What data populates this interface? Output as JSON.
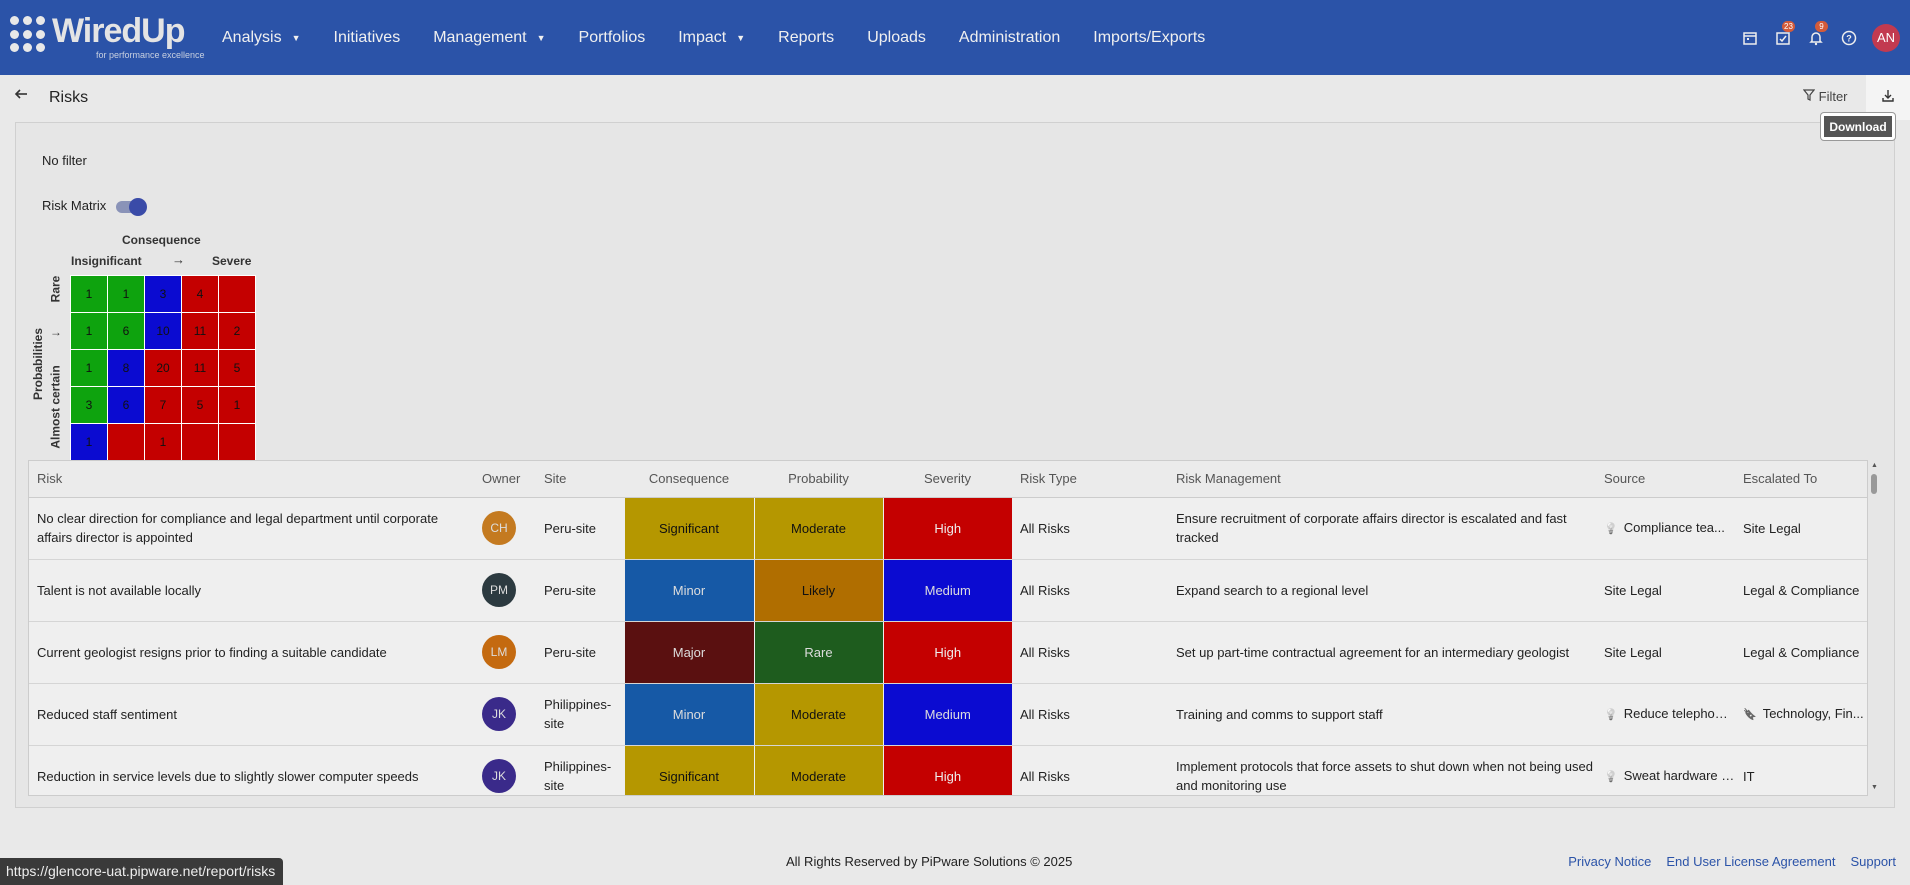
{
  "app": {
    "logo_text": "WiredUp",
    "logo_tagline": "for performance excellence"
  },
  "nav": {
    "items": [
      {
        "label": "Analysis",
        "dropdown": true
      },
      {
        "label": "Initiatives",
        "dropdown": false
      },
      {
        "label": "Management",
        "dropdown": true
      },
      {
        "label": "Portfolios",
        "dropdown": false
      },
      {
        "label": "Impact",
        "dropdown": true
      },
      {
        "label": "Reports",
        "dropdown": false
      },
      {
        "label": "Uploads",
        "dropdown": false
      },
      {
        "label": "Administration",
        "dropdown": false
      },
      {
        "label": "Imports/Exports",
        "dropdown": false
      }
    ]
  },
  "topbar": {
    "tasks_badge": "23",
    "notifications_badge": "9",
    "user_initials": "AN",
    "icons": [
      "calendar-icon",
      "tasks-icon",
      "bell-icon",
      "help-icon"
    ]
  },
  "page": {
    "title": "Risks",
    "filter_label": "Filter",
    "download_tooltip": "Download",
    "no_filter": "No filter",
    "risk_matrix_label": "Risk Matrix",
    "risk_matrix_on": true
  },
  "matrix": {
    "consequence_title": "Consequence",
    "consequence_low": "Insignificant",
    "consequence_arrow": "→",
    "consequence_high": "Severe",
    "probability_title": "Probabilities",
    "prob_low": "Rare",
    "prob_arrow": "↓",
    "prob_high": "Almost certain",
    "rows": [
      [
        {
          "v": "1",
          "c": "green"
        },
        {
          "v": "1",
          "c": "green"
        },
        {
          "v": "3",
          "c": "blue"
        },
        {
          "v": "4",
          "c": "red"
        },
        {
          "v": "",
          "c": "red"
        }
      ],
      [
        {
          "v": "1",
          "c": "green"
        },
        {
          "v": "6",
          "c": "green"
        },
        {
          "v": "10",
          "c": "blue"
        },
        {
          "v": "11",
          "c": "red"
        },
        {
          "v": "2",
          "c": "red"
        }
      ],
      [
        {
          "v": "1",
          "c": "green"
        },
        {
          "v": "8",
          "c": "blue"
        },
        {
          "v": "20",
          "c": "red"
        },
        {
          "v": "11",
          "c": "red"
        },
        {
          "v": "5",
          "c": "red"
        }
      ],
      [
        {
          "v": "3",
          "c": "green"
        },
        {
          "v": "6",
          "c": "blue"
        },
        {
          "v": "7",
          "c": "red"
        },
        {
          "v": "5",
          "c": "red"
        },
        {
          "v": "1",
          "c": "red"
        }
      ],
      [
        {
          "v": "1",
          "c": "blue"
        },
        {
          "v": "",
          "c": "red"
        },
        {
          "v": "1",
          "c": "red"
        },
        {
          "v": "",
          "c": "red"
        },
        {
          "v": "",
          "c": "red"
        }
      ]
    ]
  },
  "table": {
    "headers": [
      "Risk",
      "Owner",
      "Site",
      "Consequence",
      "Probability",
      "Severity",
      "Risk Type",
      "Risk Management",
      "Source",
      "Escalated To"
    ],
    "rows": [
      {
        "risk": "No clear direction for compliance and legal department until corporate affairs director is appointed",
        "owner": "CH",
        "owner_color": "ch",
        "site": "Peru-site",
        "consequence": "Significant",
        "cons_class": "sig",
        "probability": "Moderate",
        "prob_class": "mod",
        "severity": "High",
        "sev_class": "high",
        "risk_type": "All Risks",
        "management": "Ensure recruitment of corporate affairs director is escalated and fast tracked",
        "source": "Compliance tea...",
        "source_icon": "lightbulb-icon",
        "escalated": "Site Legal",
        "escalated_icon": ""
      },
      {
        "risk": "Talent is not available locally",
        "owner": "PM",
        "owner_color": "pm",
        "site": "Peru-site",
        "consequence": "Minor",
        "cons_class": "minor",
        "probability": "Likely",
        "prob_class": "likely",
        "severity": "Medium",
        "sev_class": "med",
        "risk_type": "All Risks",
        "management": "Expand search to a regional level",
        "source": "Site Legal",
        "source_icon": "",
        "escalated": "Legal & Compliance",
        "escalated_icon": ""
      },
      {
        "risk": "Current geologist resigns prior to finding a suitable candidate",
        "owner": "LM",
        "owner_color": "lm",
        "site": "Peru-site",
        "consequence": "Major",
        "cons_class": "major",
        "probability": "Rare",
        "prob_class": "rare",
        "severity": "High",
        "sev_class": "high",
        "risk_type": "All Risks",
        "management": "Set up part-time contractual agreement for an intermediary geologist",
        "source": "Site Legal",
        "source_icon": "",
        "escalated": "Legal & Compliance",
        "escalated_icon": ""
      },
      {
        "risk": "Reduced staff sentiment",
        "owner": "JK",
        "owner_color": "jk",
        "site": "Philippines-site",
        "consequence": "Minor",
        "cons_class": "minor",
        "probability": "Moderate",
        "prob_class": "mod",
        "severity": "Medium",
        "sev_class": "med",
        "risk_type": "All Risks",
        "management": "Training and comms to support staff",
        "source": "Reduce telephony pr",
        "source_icon": "lightbulb-icon",
        "escalated": "Technology, Fin...",
        "escalated_icon": "bookmark-icon"
      },
      {
        "risk": "Reduction in service levels due to slightly slower computer speeds",
        "owner": "JK",
        "owner_color": "jk",
        "site": "Philippines-site",
        "consequence": "Significant",
        "cons_class": "sig",
        "probability": "Moderate",
        "prob_class": "mod",
        "severity": "High",
        "sev_class": "high",
        "risk_type": "All Risks",
        "management": "Implement protocols that force assets to shut down when not being used and monitoring use",
        "source": "Sweat hardware devi",
        "source_icon": "lightbulb-icon",
        "escalated": "IT",
        "escalated_icon": ""
      }
    ]
  },
  "footer": {
    "copyright": "All Rights Reserved by PiPware Solutions © 2025",
    "links": [
      "Privacy Notice",
      "End User License Agreement",
      "Support"
    ],
    "status_url": "https://glencore-uat.pipware.net/report/risks"
  }
}
